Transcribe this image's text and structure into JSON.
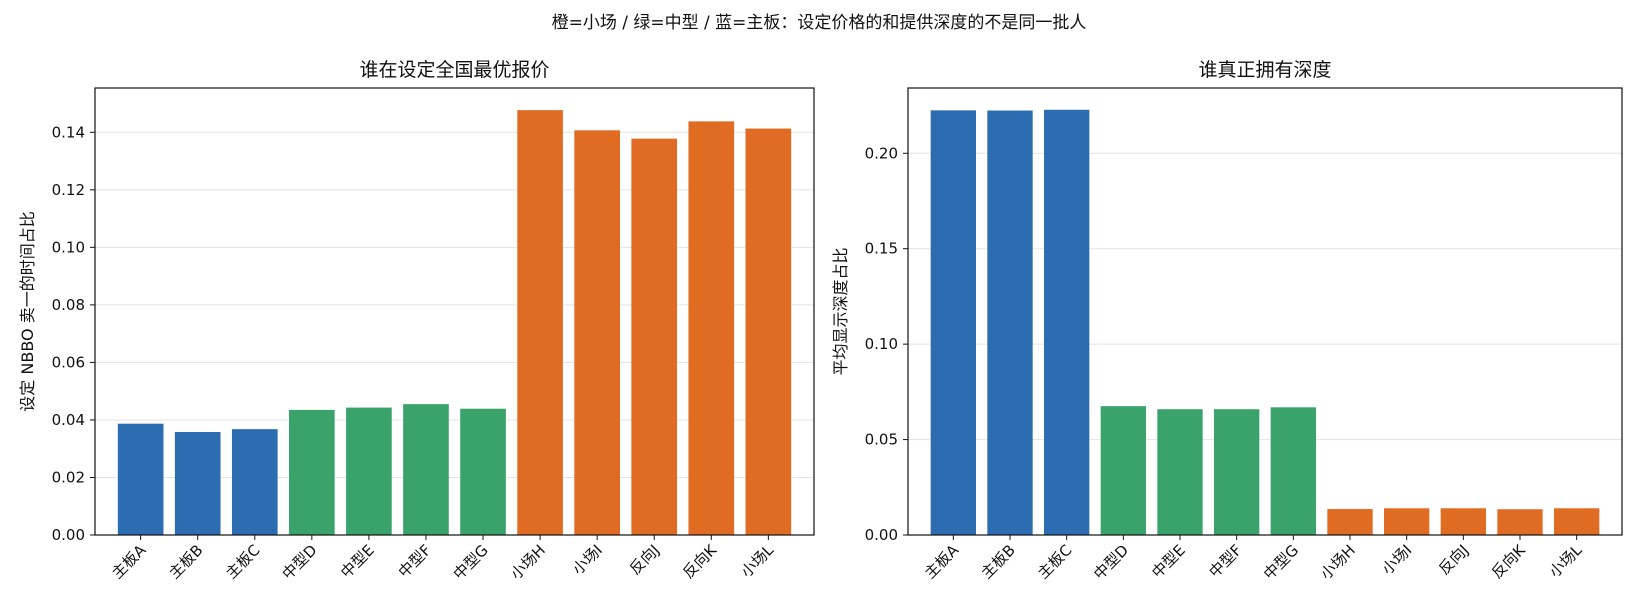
{
  "suptitle": "橙=小场 / 绿=中型 / 蓝=主板：设定价格的和提供深度的不是同一批人",
  "colors": {
    "blue": "#2c6cb0",
    "green": "#3aa36b",
    "orange": "#df6c22"
  },
  "chart_data": [
    {
      "type": "bar",
      "title": "谁在设定全国最优报价",
      "xlabel": "",
      "ylabel": "设定 NBBO 卖一的时间占比",
      "categories": [
        "主板A",
        "主板B",
        "主板C",
        "中型D",
        "中型E",
        "中型F",
        "中型G",
        "小场H",
        "小场I",
        "反向J",
        "反向K",
        "小场L"
      ],
      "values": [
        0.0387,
        0.0358,
        0.0368,
        0.0435,
        0.0443,
        0.0455,
        0.0439,
        0.1477,
        0.1407,
        0.1378,
        0.1438,
        0.1413
      ],
      "bar_colors": [
        "blue",
        "blue",
        "blue",
        "green",
        "green",
        "green",
        "green",
        "orange",
        "orange",
        "orange",
        "orange",
        "orange"
      ],
      "ylim": [
        0,
        0.1554
      ],
      "yticks": [
        "0.00",
        "0.02",
        "0.04",
        "0.06",
        "0.08",
        "0.10",
        "0.12",
        "0.14"
      ],
      "grid": "y"
    },
    {
      "type": "bar",
      "title": "谁真正拥有深度",
      "xlabel": "",
      "ylabel": "平均显示深度占比",
      "categories": [
        "主板A",
        "主板B",
        "主板C",
        "中型D",
        "中型E",
        "中型F",
        "中型G",
        "小场H",
        "小场I",
        "反向J",
        "反向K",
        "小场L"
      ],
      "values": [
        0.2225,
        0.2224,
        0.2228,
        0.0675,
        0.0659,
        0.0659,
        0.0669,
        0.0136,
        0.014,
        0.014,
        0.0135,
        0.014
      ],
      "bar_colors": [
        "blue",
        "blue",
        "blue",
        "green",
        "green",
        "green",
        "green",
        "orange",
        "orange",
        "orange",
        "orange",
        "orange"
      ],
      "ylim": [
        0,
        0.2342
      ],
      "yticks": [
        "0.00",
        "0.05",
        "0.10",
        "0.15",
        "0.20"
      ],
      "grid": "y"
    }
  ]
}
